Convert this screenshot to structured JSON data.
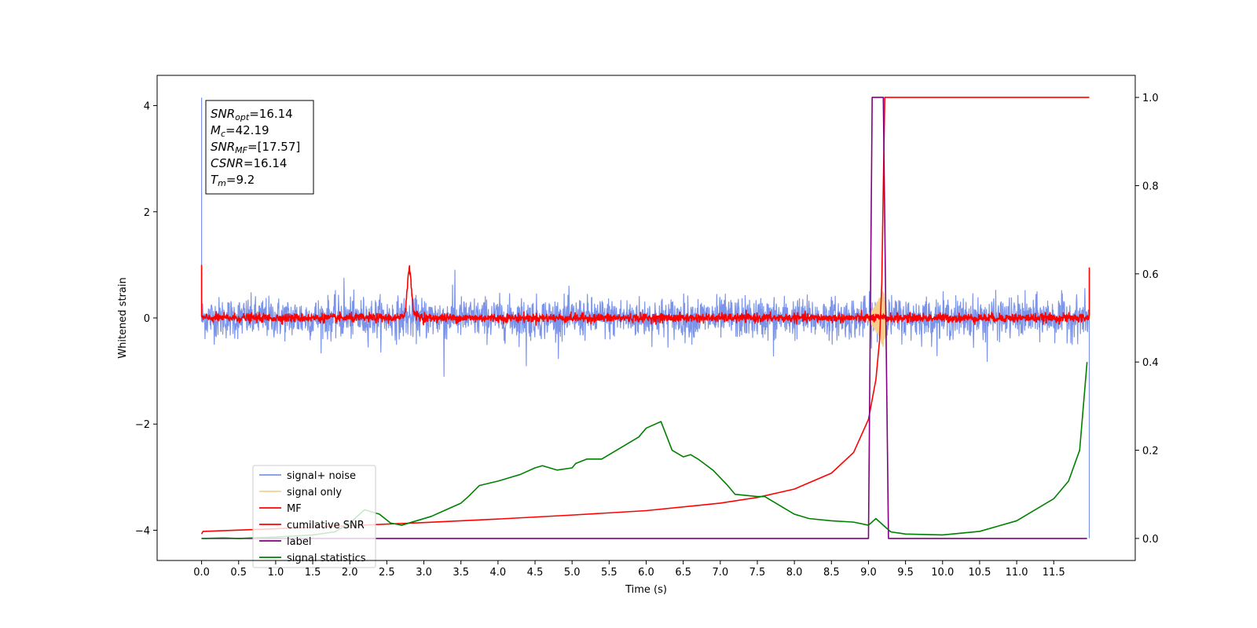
{
  "chart_data": {
    "type": "line",
    "xlabel": "Time (s)",
    "ylabel": "Whitened strain",
    "xlim": [
      -0.6,
      12.6
    ],
    "ylim_left": [
      -4.57,
      4.57
    ],
    "ylim_right": [
      -0.05,
      1.05
    ],
    "x_ticks": [
      "0.0",
      "0.5",
      "1.0",
      "1.5",
      "2.0",
      "2.5",
      "3.0",
      "3.5",
      "4.0",
      "4.5",
      "5.0",
      "5.5",
      "6.0",
      "6.5",
      "7.0",
      "7.5",
      "8.0",
      "8.5",
      "9.0",
      "9.5",
      "10.0",
      "10.5",
      "11.0",
      "11.5"
    ],
    "y_ticks_left": [
      "4",
      "2",
      "0",
      "−2",
      "−4"
    ],
    "y_ticks_right": [
      "1.0",
      "0.8",
      "0.6",
      "0.4",
      "0.2",
      "0.0"
    ],
    "legend": {
      "placement": "lower-left",
      "entries": [
        {
          "label": "signal+ noise",
          "color": "#7b94ea"
        },
        {
          "label": "signal only",
          "color": "#f8cf8a"
        },
        {
          "label": "MF",
          "color": "#ff0000"
        },
        {
          "label": "cumilative SNR",
          "color": "#ff0000"
        },
        {
          "label": "label",
          "color": "#800080"
        },
        {
          "label": "signal statistics",
          "color": "#008000"
        }
      ]
    },
    "annotation": {
      "lines": [
        {
          "sym": "SNR",
          "sub": "opt",
          "val": "=16.14"
        },
        {
          "sym": "M",
          "sub": "c",
          "val": "=42.19"
        },
        {
          "sym": "SNR",
          "sub": "MF",
          "val": "=[17.57]"
        },
        {
          "sym": "CSNR",
          "sub": "",
          "val": "=16.14"
        },
        {
          "sym": "T",
          "sub": "m",
          "val": "=9.2"
        }
      ]
    },
    "series": [
      {
        "name": "signal+ noise",
        "axis": "left",
        "color": "#7b94ea",
        "kind": "noise",
        "x_range": [
          0.0,
          11.98
        ],
        "amplitude": 0.19,
        "start_spike": 4.15,
        "end_value": -4.15,
        "spikes": [
          [
            3.27,
            -1.1
          ],
          [
            3.42,
            0.9
          ],
          [
            4.38,
            -0.9
          ],
          [
            1.92,
            0.75
          ],
          [
            7.72,
            -0.72
          ],
          [
            10.6,
            -0.82
          ]
        ]
      },
      {
        "name": "signal only",
        "axis": "left",
        "color": "#f8cf8a",
        "kind": "chirp",
        "x_range": [
          8.9,
          9.25
        ],
        "peak": 0.75
      },
      {
        "name": "MF",
        "axis": "left",
        "color": "#ff0000",
        "kind": "noise",
        "x_range": [
          0.0,
          11.98
        ],
        "amplitude": 0.04,
        "start_spike": 1.0,
        "end_spike": 0.95,
        "bump": {
          "x": 2.8,
          "peak": 0.85
        }
      },
      {
        "name": "cumilative SNR",
        "axis": "right",
        "color": "#ff0000",
        "x": [
          0.0,
          0.02,
          1.0,
          2.0,
          3.0,
          4.0,
          5.0,
          6.0,
          7.0,
          7.5,
          8.0,
          8.5,
          8.8,
          9.0,
          9.1,
          9.15,
          9.18,
          9.2,
          9.22,
          9.3,
          10.0,
          11.0,
          11.98
        ],
        "y": [
          0.01,
          0.016,
          0.022,
          0.029,
          0.036,
          0.044,
          0.053,
          0.063,
          0.08,
          0.093,
          0.112,
          0.148,
          0.195,
          0.27,
          0.36,
          0.45,
          0.58,
          0.8,
          1.0,
          1.0,
          1.0,
          1.0,
          1.0
        ]
      },
      {
        "name": "label",
        "axis": "right",
        "color": "#800080",
        "x": [
          0.0,
          9.0,
          9.05,
          9.2,
          9.27,
          11.95
        ],
        "y": [
          0.0,
          0.0,
          1.0,
          1.0,
          0.0,
          0.0
        ]
      },
      {
        "name": "signal statistics",
        "axis": "right",
        "color": "#008000",
        "x": [
          0.0,
          0.3,
          0.5,
          1.0,
          1.5,
          1.8,
          2.0,
          2.2,
          2.4,
          2.55,
          2.7,
          2.9,
          3.1,
          3.3,
          3.5,
          3.6,
          3.75,
          4.0,
          4.2,
          4.3,
          4.5,
          4.6,
          4.8,
          5.0,
          5.05,
          5.2,
          5.4,
          5.5,
          5.6,
          5.7,
          5.9,
          6.0,
          6.2,
          6.35,
          6.5,
          6.6,
          6.7,
          6.9,
          7.1,
          7.2,
          7.5,
          7.6,
          7.8,
          8.0,
          8.2,
          8.5,
          8.8,
          9.0,
          9.1,
          9.3,
          9.5,
          10.0,
          10.5,
          11.0,
          11.5,
          11.7,
          11.85,
          11.95
        ],
        "y": [
          0.0,
          0.001,
          0.0,
          0.003,
          0.008,
          0.015,
          0.035,
          0.065,
          0.055,
          0.035,
          0.03,
          0.04,
          0.05,
          0.065,
          0.08,
          0.095,
          0.12,
          0.13,
          0.14,
          0.145,
          0.16,
          0.165,
          0.155,
          0.16,
          0.17,
          0.18,
          0.18,
          0.19,
          0.2,
          0.21,
          0.23,
          0.25,
          0.265,
          0.2,
          0.185,
          0.19,
          0.18,
          0.155,
          0.12,
          0.1,
          0.095,
          0.095,
          0.075,
          0.055,
          0.045,
          0.04,
          0.037,
          0.03,
          0.045,
          0.015,
          0.01,
          0.008,
          0.016,
          0.04,
          0.09,
          0.13,
          0.2,
          0.4
        ]
      }
    ]
  }
}
